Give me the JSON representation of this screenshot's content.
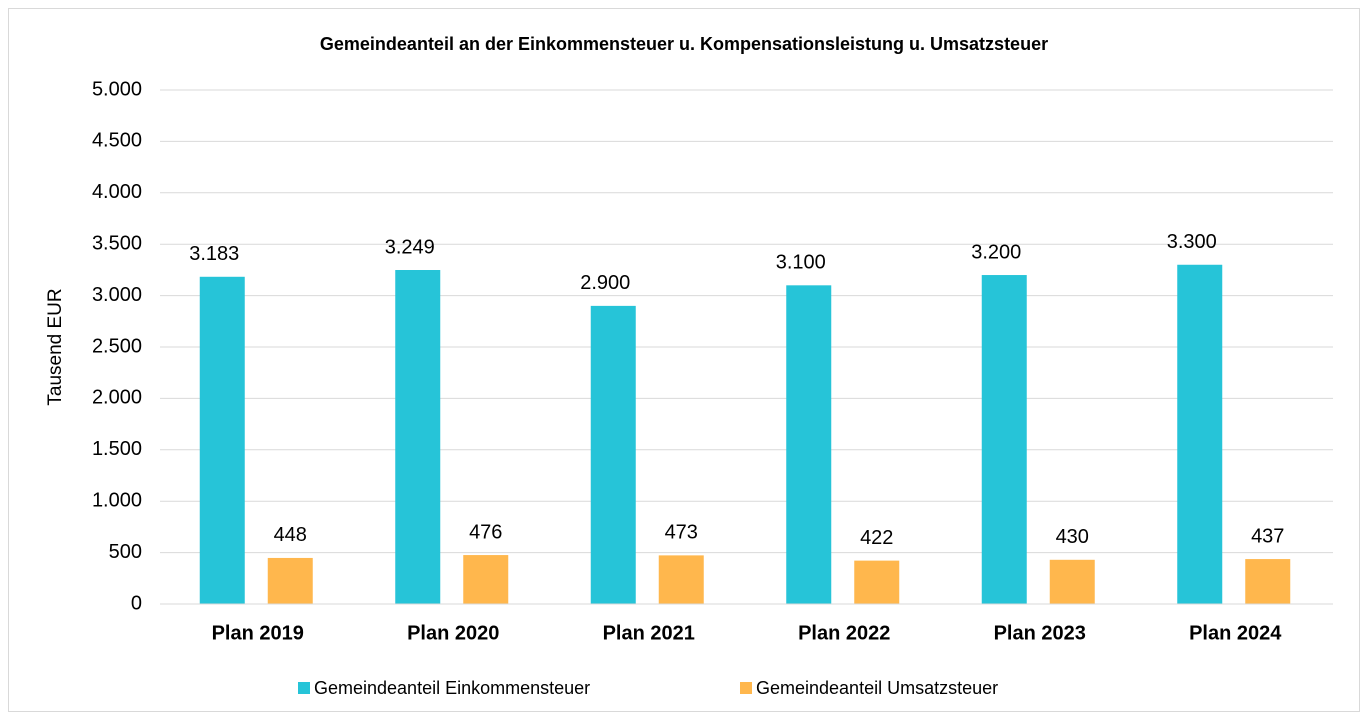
{
  "chart_data": {
    "type": "bar",
    "title": "Gemeindeanteil an der Einkommensteuer u. Kompensationsleistung u. Umsatzsteuer",
    "y_label": "Tausend EUR",
    "categories": [
      "Plan 2019",
      "Plan 2020",
      "Plan 2021",
      "Plan 2022",
      "Plan 2023",
      "Plan 2024"
    ],
    "series": [
      {
        "name": "Gemeindeanteil Einkommensteuer",
        "color": "#26c4d8",
        "values": [
          3183,
          3249,
          2900,
          3100,
          3200,
          3300
        ],
        "value_labels": [
          "3.183",
          "3.249",
          "2.900",
          "3.100",
          "3.200",
          "3.300"
        ]
      },
      {
        "name": "Gemeindeanteil Umsatzsteuer",
        "color": "#ffb74d",
        "values": [
          448,
          476,
          473,
          422,
          430,
          437
        ]
      }
    ],
    "ylim": [
      0,
      5000
    ],
    "yticks": [
      0,
      500,
      {
        "value": 1000,
        "label": "1.000"
      },
      {
        "value": 1500,
        "label": "1.500"
      },
      {
        "value": 2000,
        "label": "2.000"
      },
      {
        "value": 2500,
        "label": "2.500"
      },
      {
        "value": 3000,
        "label": "3.000"
      },
      {
        "value": 3500,
        "label": "3.500"
      },
      {
        "value": 4000,
        "label": "4.000"
      },
      {
        "value": 4500,
        "label": "4.500"
      },
      {
        "value": 5000,
        "label": "5.000"
      }
    ],
    "grid": true,
    "legend": "bottom"
  }
}
